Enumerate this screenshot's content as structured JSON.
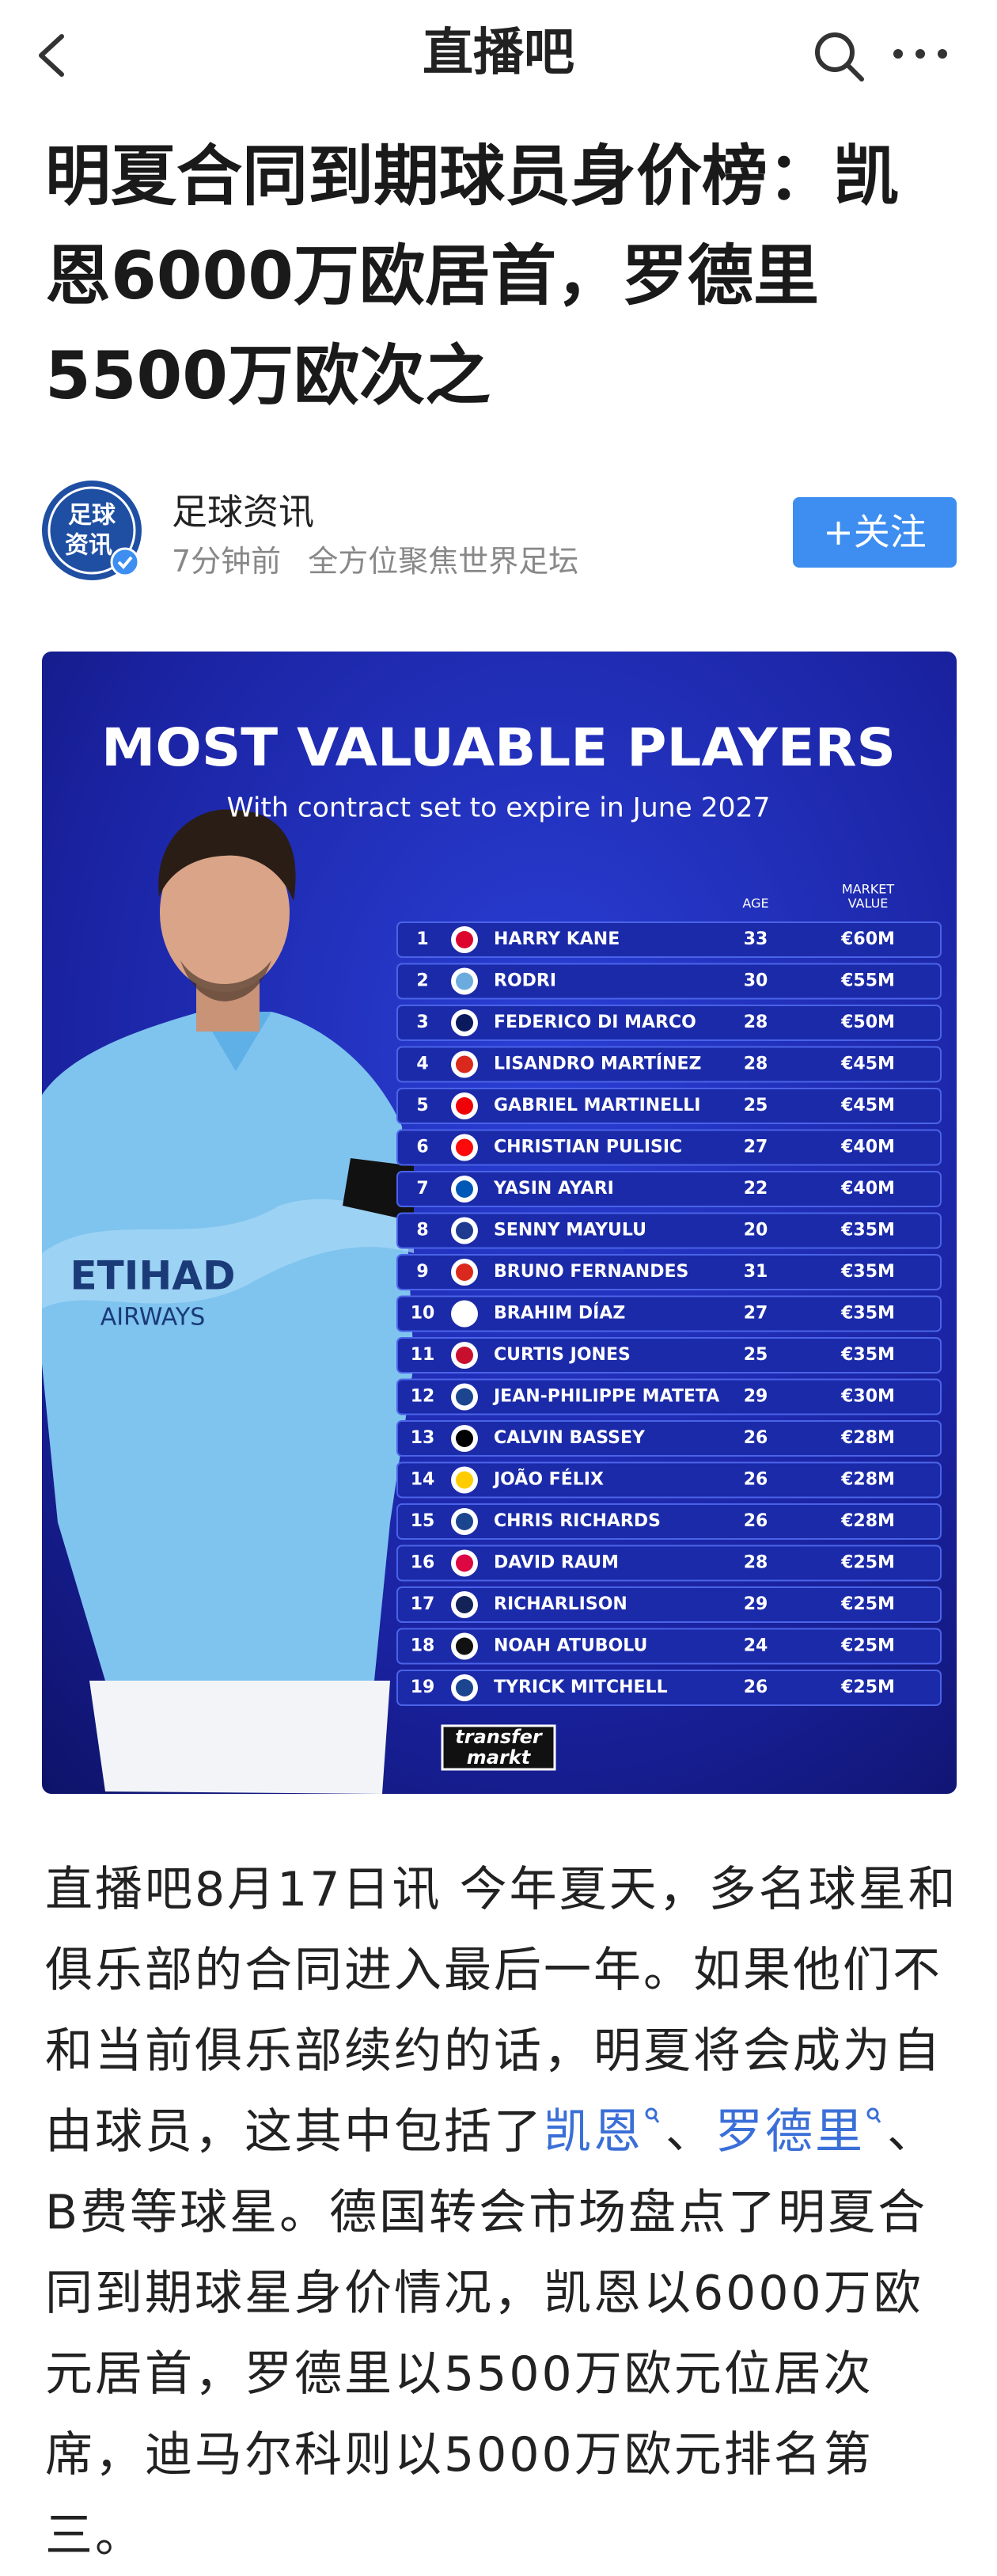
{
  "header": {
    "title": "直播吧"
  },
  "article": {
    "title": "明夏合同到期球员身价榜：凯恩6000万欧居首，罗德里5500万欧次之",
    "author": {
      "avatar_text": [
        "足球",
        "资讯"
      ],
      "name": "足球资讯",
      "time": "7分钟前",
      "tagline": "全方位聚焦世界足坛",
      "follow": "+关注"
    },
    "body": {
      "before": "直播吧8月17日讯 今年夏天，多名球星和俱乐部的合同进入最后一年。如果他们不和当前俱乐部续约的话，明夏将会成为自由球员，这其中包括了",
      "link1": "凯恩",
      "sep": "、",
      "link2": "罗德里",
      "after": "、B费等球星。德国转会市场盘点了明夏合同到期球星身价情况，凯恩以6000万欧元居首，罗德里以5500万欧元位居次席，迪马尔科则以5000万欧元排名第三。"
    }
  },
  "infographic": {
    "title": "MOST VALUABLE PLAYERS",
    "subtitle": "With contract set to expire in June 2027",
    "columns": {
      "age": "AGE",
      "value": [
        "MARKET",
        "VALUE"
      ]
    },
    "sponsor": [
      "ETIHAD",
      "AIRWAYS"
    ],
    "logo": [
      "transfer",
      "markt"
    ],
    "rows": [
      [
        1,
        "HARRY KANE",
        33,
        "€60M"
      ],
      [
        2,
        "RODRI",
        30,
        "€55M"
      ],
      [
        3,
        "FEDERICO DI MARCO",
        28,
        "€50M"
      ],
      [
        4,
        "LISANDRO MARTÍNEZ",
        28,
        "€45M"
      ],
      [
        5,
        "GABRIEL MARTINELLI",
        25,
        "€45M"
      ],
      [
        6,
        "CHRISTIAN PULISIC",
        27,
        "€40M"
      ],
      [
        7,
        "YASIN AYARI",
        22,
        "€40M"
      ],
      [
        8,
        "SENNY MAYULU",
        20,
        "€35M"
      ],
      [
        9,
        "BRUNO FERNANDES",
        31,
        "€35M"
      ],
      [
        10,
        "BRAHIM DÍAZ",
        27,
        "€35M"
      ],
      [
        11,
        "CURTIS JONES",
        25,
        "€35M"
      ],
      [
        12,
        "JEAN-PHILIPPE MATETA",
        29,
        "€30M"
      ],
      [
        13,
        "CALVIN BASSEY",
        26,
        "€28M"
      ],
      [
        14,
        "JOÃO FÉLIX",
        26,
        "€28M"
      ],
      [
        15,
        "CHRIS RICHARDS",
        26,
        "€28M"
      ],
      [
        16,
        "DAVID RAUM",
        28,
        "€25M"
      ],
      [
        17,
        "RICHARLISON",
        29,
        "€25M"
      ],
      [
        18,
        "NOAH ATUBOLU",
        24,
        "€25M"
      ],
      [
        19,
        "TYRICK MITCHELL",
        26,
        "€25M"
      ]
    ]
  }
}
